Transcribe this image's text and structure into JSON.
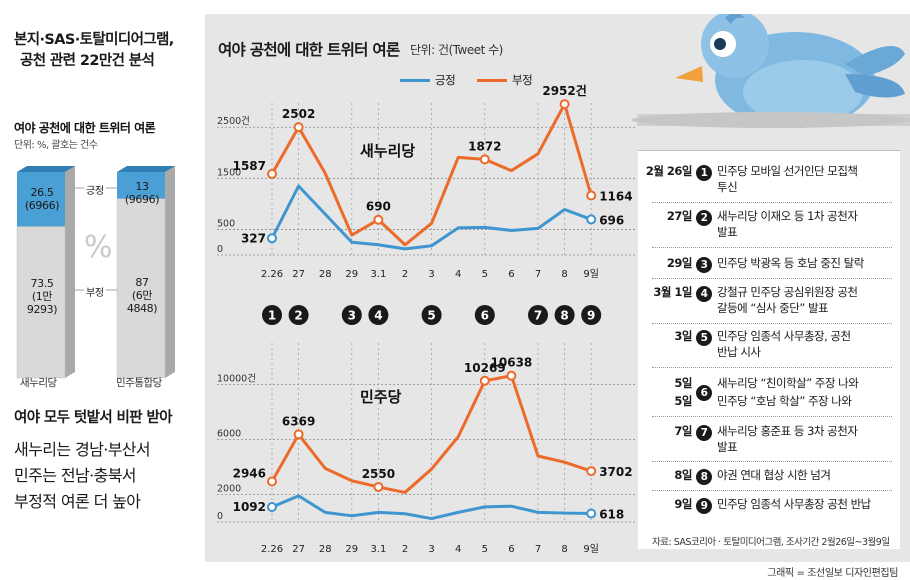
{
  "headline": {
    "line1": "본지·SAS·토탈미디어그램,",
    "line2": "공천 관련 22만건 분석"
  },
  "bar_section": {
    "title": "여야 공천에 대한 트위터 여론",
    "unit": "단위: %, 괄호는 건수",
    "label_positive": "긍정",
    "label_negative": "부정",
    "percent_symbol": "%",
    "bars": [
      {
        "name": "새누리당",
        "positive": "26.5",
        "positive_count": "(6966)",
        "negative": "73.5",
        "negative_count_a": "(1만",
        "negative_count_b": "9293)",
        "positive_ratio": 0.265
      },
      {
        "name": "민주통합당",
        "positive": "13",
        "positive_count": "(9696)",
        "negative": "87",
        "negative_count_a": "(6만",
        "negative_count_b": "4848)",
        "positive_ratio": 0.13
      }
    ],
    "colors": {
      "positive": "#4a9fd4",
      "negative": "#d9d9d9",
      "side": "#a9a9a9"
    }
  },
  "summary": {
    "title": "여야 모두 텃밭서 비판 받아",
    "line1": "새누리는 경남·부산서",
    "line2": "민주는 전남·충북서",
    "line3": "부정적 여론 더 높아"
  },
  "panel": {
    "title": "여야 공천에 대한 트위터 여론",
    "unit": "단위: 건(Tweet 수)",
    "legend_positive": "긍정",
    "legend_negative": "부정",
    "colors": {
      "positive": "#3f95cf",
      "negative": "#ec6a2a",
      "background": "#e6e6e6"
    }
  },
  "chart_data": [
    {
      "type": "line",
      "title": "새누리당",
      "categories": [
        "2.26",
        "27",
        "28",
        "29",
        "3.1",
        "2",
        "3",
        "4",
        "5",
        "6",
        "7",
        "8",
        "9일"
      ],
      "yticks": [
        "0",
        "500",
        "1500",
        "2500건"
      ],
      "ylim": [
        0,
        2700
      ],
      "series": [
        {
          "name": "부정",
          "values": [
            1587,
            2502,
            1600,
            390,
            690,
            200,
            620,
            1910,
            1872,
            1650,
            1980,
            2952,
            1164
          ]
        },
        {
          "name": "긍정",
          "values": [
            327,
            1350,
            800,
            250,
            200,
            120,
            180,
            530,
            540,
            480,
            520,
            890,
            696
          ]
        }
      ],
      "labels": [
        {
          "series": "부정",
          "index": 0,
          "text": "1587"
        },
        {
          "series": "부정",
          "index": 1,
          "text": "2502"
        },
        {
          "series": "부정",
          "index": 4,
          "text": "690"
        },
        {
          "series": "부정",
          "index": 8,
          "text": "1872"
        },
        {
          "series": "부정",
          "index": 11,
          "text": "2952건"
        },
        {
          "series": "부정",
          "index": 12,
          "text": "1164"
        },
        {
          "series": "긍정",
          "index": 0,
          "text": "327"
        },
        {
          "series": "긍정",
          "index": 12,
          "text": "696"
        }
      ]
    },
    {
      "type": "line",
      "title": "민주당",
      "categories": [
        "2.26",
        "27",
        "28",
        "29",
        "3.1",
        "2",
        "3",
        "4",
        "5",
        "6",
        "7",
        "8",
        "9일"
      ],
      "yticks": [
        "0",
        "2000",
        "6000",
        "10000건"
      ],
      "ylim": [
        0,
        12000
      ],
      "series": [
        {
          "name": "부정",
          "values": [
            2946,
            6369,
            3900,
            3000,
            2550,
            2150,
            3850,
            6200,
            10269,
            10638,
            4800,
            4350,
            3702
          ]
        },
        {
          "name": "긍정",
          "values": [
            1092,
            1900,
            700,
            450,
            700,
            600,
            250,
            700,
            1100,
            1150,
            700,
            650,
            618
          ]
        }
      ],
      "labels": [
        {
          "series": "부정",
          "index": 0,
          "text": "2946"
        },
        {
          "series": "부정",
          "index": 1,
          "text": "6369"
        },
        {
          "series": "부정",
          "index": 4,
          "text": "2550"
        },
        {
          "series": "부정",
          "index": 8,
          "text": "10269"
        },
        {
          "series": "부정",
          "index": 9,
          "text": "10638"
        },
        {
          "series": "부정",
          "index": 12,
          "text": "3702"
        },
        {
          "series": "긍정",
          "index": 0,
          "text": "1092"
        },
        {
          "series": "긍정",
          "index": 12,
          "text": "618"
        }
      ]
    }
  ],
  "event_markers": [
    {
      "index": 0,
      "num": "1"
    },
    {
      "index": 1,
      "num": "2"
    },
    {
      "index": 3,
      "num": "3"
    },
    {
      "index": 4,
      "num": "4"
    },
    {
      "index": 6,
      "num": "5"
    },
    {
      "index": 8,
      "num": "6"
    },
    {
      "index": 10,
      "num": "7"
    },
    {
      "index": 11,
      "num": "8"
    },
    {
      "index": 12,
      "num": "9"
    }
  ],
  "timeline": [
    {
      "date": "2월 26일",
      "num": "1",
      "text": "민주당 모바일 선거인단 모집책",
      "text2": "투신"
    },
    {
      "date": "27일",
      "num": "2",
      "text": "새누리당 이재오 등 1차 공천자",
      "text2": "발표"
    },
    {
      "date": "29일",
      "num": "3",
      "text": "민주당 박광옥 등 호남 중진 탈락",
      "text2": ""
    },
    {
      "date": "3월 1일",
      "num": "4",
      "text": "강철규 민주당 공심위원장 공천",
      "text2": "갈등에 “심사 중단” 발표"
    },
    {
      "date": "3일",
      "num": "5",
      "text": "민주당 임종석 사무총장, 공천",
      "text2": "반납 시사"
    },
    {
      "date": "5일",
      "date2": "5일",
      "num": "6",
      "text": "새누리당 “친이학살” 주장 나와",
      "text2": "민주당 “호남 학살” 주장 나와"
    },
    {
      "date": "7일",
      "num": "7",
      "text": "새누리당 홍준표 등 3차 공천자",
      "text2": "발표"
    },
    {
      "date": "8일",
      "num": "8",
      "text": "야권 연대 협상 시한 넘겨",
      "text2": ""
    },
    {
      "date": "9일",
      "num": "9",
      "text": "민주당 임종석 사무총장 공천 반납",
      "text2": ""
    }
  ],
  "source": "자료: SAS코리아 · 토탈미디어그램, 조사기간 2월26일~3월9일",
  "credit": "그래픽 = 조선일보 디자인편집팀"
}
